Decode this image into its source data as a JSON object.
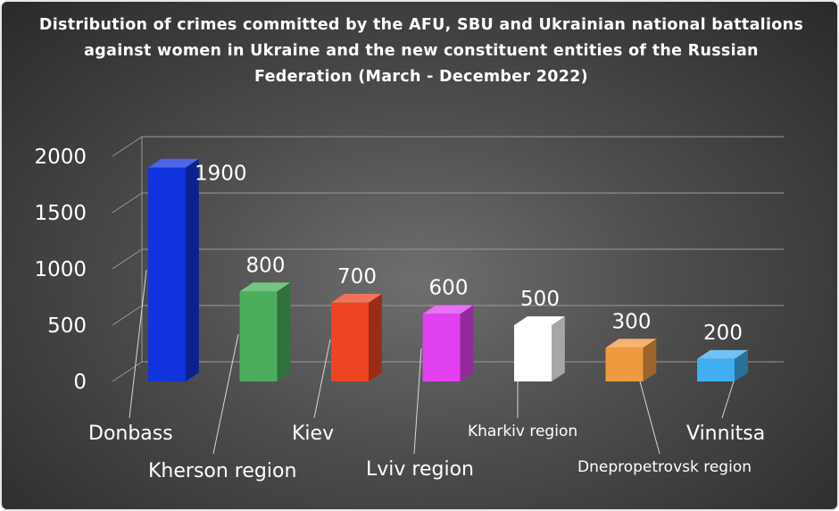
{
  "chart_data": {
    "type": "bar",
    "title": "Distribution of crimes committed by the AFU, SBU and Ukrainian national battalions against women in Ukraine and the new constituent entities of the Russian Federation (March - December 2022)",
    "categories": [
      "Donbass",
      "Kherson region",
      "Kiev",
      "Lviv region",
      "Kharkiv region",
      "Dnepropetrovsk region",
      "Vinnitsa"
    ],
    "values": [
      1900,
      800,
      700,
      600,
      500,
      300,
      200
    ],
    "colors": [
      "#1133dd",
      "#4cae5c",
      "#ee4422",
      "#e040f0",
      "#ffffff",
      "#f09a40",
      "#40aef0"
    ],
    "ylim": [
      0,
      2000
    ],
    "yticks": [
      "0",
      "500",
      "1000",
      "1500",
      "2000"
    ],
    "data_labels": [
      "1900",
      "800",
      "700",
      "600",
      "500",
      "300",
      "200"
    ],
    "grid": true,
    "legend": "none",
    "xlabel": "",
    "ylabel": ""
  }
}
